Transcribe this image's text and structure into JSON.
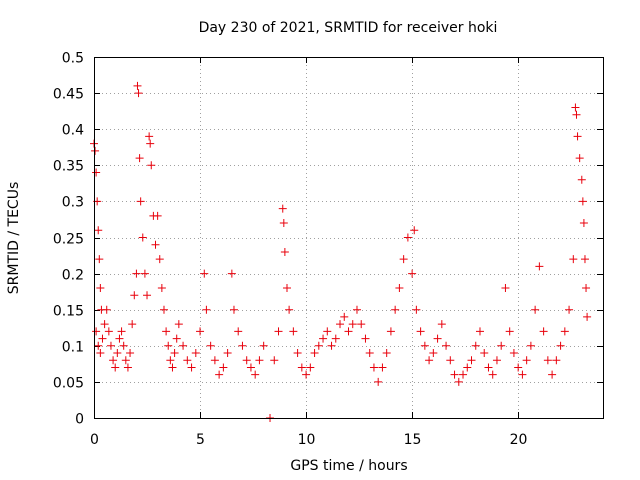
{
  "chart_data": {
    "type": "scatter",
    "title": "Day 230 of 2021, SRMTID for receiver hoki",
    "xlabel": "GPS time / hours",
    "ylabel": "SRMTID / TECUs",
    "xlim": [
      0,
      24
    ],
    "ylim": [
      0,
      0.5
    ],
    "xticks": [
      "0",
      "5",
      "10",
      "15",
      "20"
    ],
    "yticks": [
      "0",
      "0.05",
      "0.1",
      "0.15",
      "0.2",
      "0.25",
      "0.3",
      "0.35",
      "0.4",
      "0.45",
      "0.5"
    ],
    "grid": true,
    "marker": "+",
    "color": "#e8000b",
    "series": [
      {
        "name": "SRMTID",
        "points": [
          [
            0.0,
            0.38
          ],
          [
            0.05,
            0.37
          ],
          [
            0.1,
            0.34
          ],
          [
            0.15,
            0.3
          ],
          [
            0.2,
            0.26
          ],
          [
            0.25,
            0.22
          ],
          [
            0.3,
            0.18
          ],
          [
            0.35,
            0.15
          ],
          [
            0.1,
            0.12
          ],
          [
            0.2,
            0.1
          ],
          [
            0.3,
            0.09
          ],
          [
            0.4,
            0.11
          ],
          [
            0.5,
            0.13
          ],
          [
            0.6,
            0.15
          ],
          [
            0.7,
            0.12
          ],
          [
            0.8,
            0.1
          ],
          [
            0.9,
            0.08
          ],
          [
            1.0,
            0.07
          ],
          [
            1.1,
            0.09
          ],
          [
            1.2,
            0.11
          ],
          [
            1.3,
            0.12
          ],
          [
            1.4,
            0.1
          ],
          [
            1.5,
            0.08
          ],
          [
            1.6,
            0.07
          ],
          [
            1.7,
            0.09
          ],
          [
            1.8,
            0.13
          ],
          [
            1.9,
            0.17
          ],
          [
            2.0,
            0.2
          ],
          [
            2.05,
            0.46
          ],
          [
            2.1,
            0.45
          ],
          [
            2.15,
            0.36
          ],
          [
            2.2,
            0.3
          ],
          [
            2.3,
            0.25
          ],
          [
            2.4,
            0.2
          ],
          [
            2.5,
            0.17
          ],
          [
            2.6,
            0.39
          ],
          [
            2.65,
            0.38
          ],
          [
            2.7,
            0.35
          ],
          [
            2.8,
            0.28
          ],
          [
            2.9,
            0.24
          ],
          [
            3.0,
            0.28
          ],
          [
            3.1,
            0.22
          ],
          [
            3.2,
            0.18
          ],
          [
            3.3,
            0.15
          ],
          [
            3.4,
            0.12
          ],
          [
            3.5,
            0.1
          ],
          [
            3.6,
            0.08
          ],
          [
            3.7,
            0.07
          ],
          [
            3.8,
            0.09
          ],
          [
            3.9,
            0.11
          ],
          [
            4.0,
            0.13
          ],
          [
            4.2,
            0.1
          ],
          [
            4.4,
            0.08
          ],
          [
            4.6,
            0.07
          ],
          [
            4.8,
            0.09
          ],
          [
            5.0,
            0.12
          ],
          [
            5.2,
            0.2
          ],
          [
            5.3,
            0.15
          ],
          [
            5.5,
            0.1
          ],
          [
            5.7,
            0.08
          ],
          [
            5.9,
            0.06
          ],
          [
            6.1,
            0.07
          ],
          [
            6.3,
            0.09
          ],
          [
            6.5,
            0.2
          ],
          [
            6.6,
            0.15
          ],
          [
            6.8,
            0.12
          ],
          [
            7.0,
            0.1
          ],
          [
            7.2,
            0.08
          ],
          [
            7.4,
            0.07
          ],
          [
            7.6,
            0.06
          ],
          [
            7.8,
            0.08
          ],
          [
            8.0,
            0.1
          ],
          [
            8.3,
            0.0
          ],
          [
            8.5,
            0.08
          ],
          [
            8.7,
            0.12
          ],
          [
            8.9,
            0.29
          ],
          [
            8.95,
            0.27
          ],
          [
            9.0,
            0.23
          ],
          [
            9.1,
            0.18
          ],
          [
            9.2,
            0.15
          ],
          [
            9.4,
            0.12
          ],
          [
            9.6,
            0.09
          ],
          [
            9.8,
            0.07
          ],
          [
            10.0,
            0.06
          ],
          [
            10.2,
            0.07
          ],
          [
            10.4,
            0.09
          ],
          [
            10.6,
            0.1
          ],
          [
            10.8,
            0.11
          ],
          [
            11.0,
            0.12
          ],
          [
            11.2,
            0.1
          ],
          [
            11.4,
            0.11
          ],
          [
            11.6,
            0.13
          ],
          [
            11.8,
            0.14
          ],
          [
            12.0,
            0.12
          ],
          [
            12.2,
            0.13
          ],
          [
            12.4,
            0.15
          ],
          [
            12.6,
            0.13
          ],
          [
            12.8,
            0.11
          ],
          [
            13.0,
            0.09
          ],
          [
            13.2,
            0.07
          ],
          [
            13.4,
            0.05
          ],
          [
            13.6,
            0.07
          ],
          [
            13.8,
            0.09
          ],
          [
            14.0,
            0.12
          ],
          [
            14.2,
            0.15
          ],
          [
            14.4,
            0.18
          ],
          [
            14.6,
            0.22
          ],
          [
            14.8,
            0.25
          ],
          [
            15.0,
            0.2
          ],
          [
            15.1,
            0.26
          ],
          [
            15.2,
            0.15
          ],
          [
            15.4,
            0.12
          ],
          [
            15.6,
            0.1
          ],
          [
            15.8,
            0.08
          ],
          [
            16.0,
            0.09
          ],
          [
            16.2,
            0.11
          ],
          [
            16.4,
            0.13
          ],
          [
            16.6,
            0.1
          ],
          [
            16.8,
            0.08
          ],
          [
            17.0,
            0.06
          ],
          [
            17.2,
            0.05
          ],
          [
            17.4,
            0.06
          ],
          [
            17.6,
            0.07
          ],
          [
            17.8,
            0.08
          ],
          [
            18.0,
            0.1
          ],
          [
            18.2,
            0.12
          ],
          [
            18.4,
            0.09
          ],
          [
            18.6,
            0.07
          ],
          [
            18.8,
            0.06
          ],
          [
            19.0,
            0.08
          ],
          [
            19.2,
            0.1
          ],
          [
            19.4,
            0.18
          ],
          [
            19.6,
            0.12
          ],
          [
            19.8,
            0.09
          ],
          [
            20.0,
            0.07
          ],
          [
            20.2,
            0.06
          ],
          [
            20.4,
            0.08
          ],
          [
            20.6,
            0.1
          ],
          [
            20.8,
            0.15
          ],
          [
            21.0,
            0.21
          ],
          [
            21.2,
            0.12
          ],
          [
            21.4,
            0.08
          ],
          [
            21.6,
            0.06
          ],
          [
            21.8,
            0.08
          ],
          [
            22.0,
            0.1
          ],
          [
            22.2,
            0.12
          ],
          [
            22.4,
            0.15
          ],
          [
            22.6,
            0.22
          ],
          [
            22.7,
            0.43
          ],
          [
            22.75,
            0.42
          ],
          [
            22.8,
            0.39
          ],
          [
            22.9,
            0.36
          ],
          [
            23.0,
            0.33
          ],
          [
            23.05,
            0.3
          ],
          [
            23.1,
            0.27
          ],
          [
            23.15,
            0.22
          ],
          [
            23.2,
            0.18
          ],
          [
            23.25,
            0.14
          ]
        ]
      }
    ]
  }
}
